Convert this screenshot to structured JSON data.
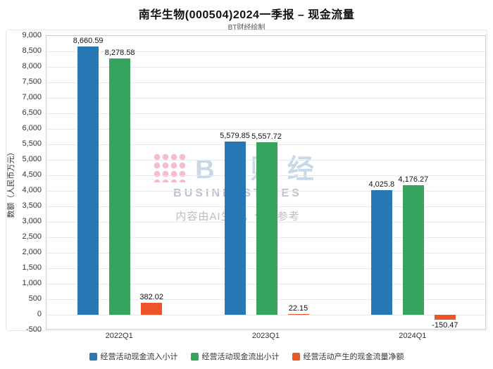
{
  "title": "南华生物(000504)2024一季报 – 现金流量",
  "subtitle": "BT财经绘制",
  "watermark": {
    "logo_text": "BT财经",
    "brand": "BUSINESSTIMES",
    "disclaimer": "内容由AI生成，仅供参考"
  },
  "chart_data": {
    "type": "bar",
    "title": "南华生物(000504)2024一季报 – 现金流量",
    "categories": [
      "2022Q1",
      "2023Q1",
      "2024Q1"
    ],
    "series": [
      {
        "name": "经营活动现金流入小计",
        "color": "#2878B5",
        "values": [
          8660.59,
          5579.85,
          4025.8
        ],
        "labels": [
          "8,660.59",
          "5,579.85",
          "4,025.8"
        ]
      },
      {
        "name": "经营活动现金流出小计",
        "color": "#36A35E",
        "values": [
          8278.58,
          5557.72,
          4176.27
        ],
        "labels": [
          "8,278.58",
          "5,557.72",
          "4,176.27"
        ]
      },
      {
        "name": "经营活动产生的现金流量净额",
        "color": "#EB5528",
        "values": [
          382.02,
          22.15,
          -150.47
        ],
        "labels": [
          "382.02",
          "22.15",
          "-150.47"
        ]
      }
    ],
    "xlabel": "",
    "ylabel": "数额（人民币万元）",
    "ylim": [
      -500,
      9000
    ],
    "ytick_step": 500,
    "grid": true,
    "legend_position": "bottom"
  }
}
